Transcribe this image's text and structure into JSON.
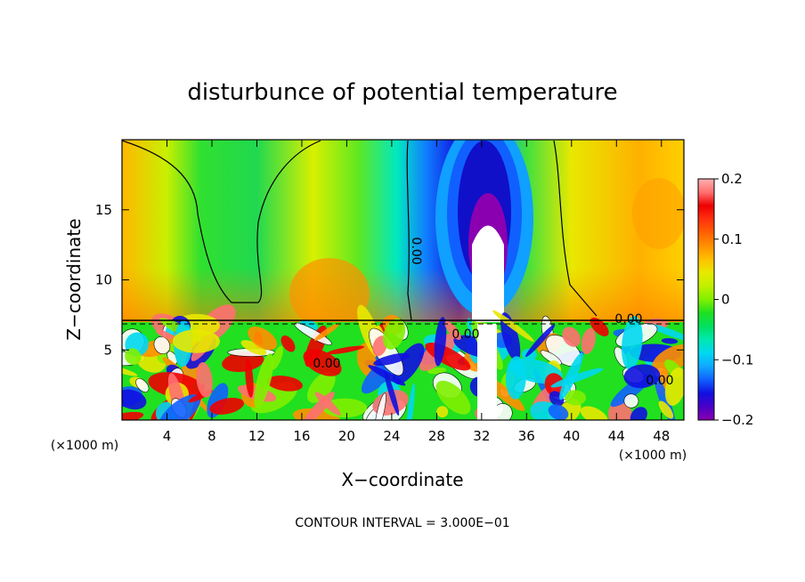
{
  "chart_data": {
    "type": "heatmap",
    "title": "disturbunce of potential temperature",
    "xlabel": "X−coordinate",
    "ylabel": "Z−coordinate",
    "x_unit_left": "(×1000 m)",
    "x_unit_right": "(×1000 m)",
    "footer": "CONTOUR INTERVAL = 3.000E−01",
    "xlim": [
      0,
      50
    ],
    "ylim": [
      0,
      20
    ],
    "x_ticks": [
      "4",
      "8",
      "12",
      "16",
      "20",
      "24",
      "28",
      "32",
      "36",
      "40",
      "44",
      "48"
    ],
    "y_ticks": [
      "5",
      "10",
      "15"
    ],
    "colorbar": {
      "range": [
        -0.2,
        0.2
      ],
      "tick_labels": [
        "0.2",
        "0.1",
        "0",
        "−0.1",
        "−0.2"
      ],
      "colors": [
        "#8a00b0",
        "#4a00c8",
        "#1010e0",
        "#1060ff",
        "#10a8ff",
        "#00d8f0",
        "#00e8b0",
        "#00e060",
        "#20e020",
        "#80f000",
        "#c0f000",
        "#e8e800",
        "#ffc000",
        "#ff9000",
        "#ff6000",
        "#ff3010",
        "#ee0000",
        "#ff7070",
        "#ffb0b0"
      ]
    },
    "contour_labels": [
      "0.00",
      "0.00",
      "0.00",
      "0.00",
      "0.00"
    ]
  }
}
